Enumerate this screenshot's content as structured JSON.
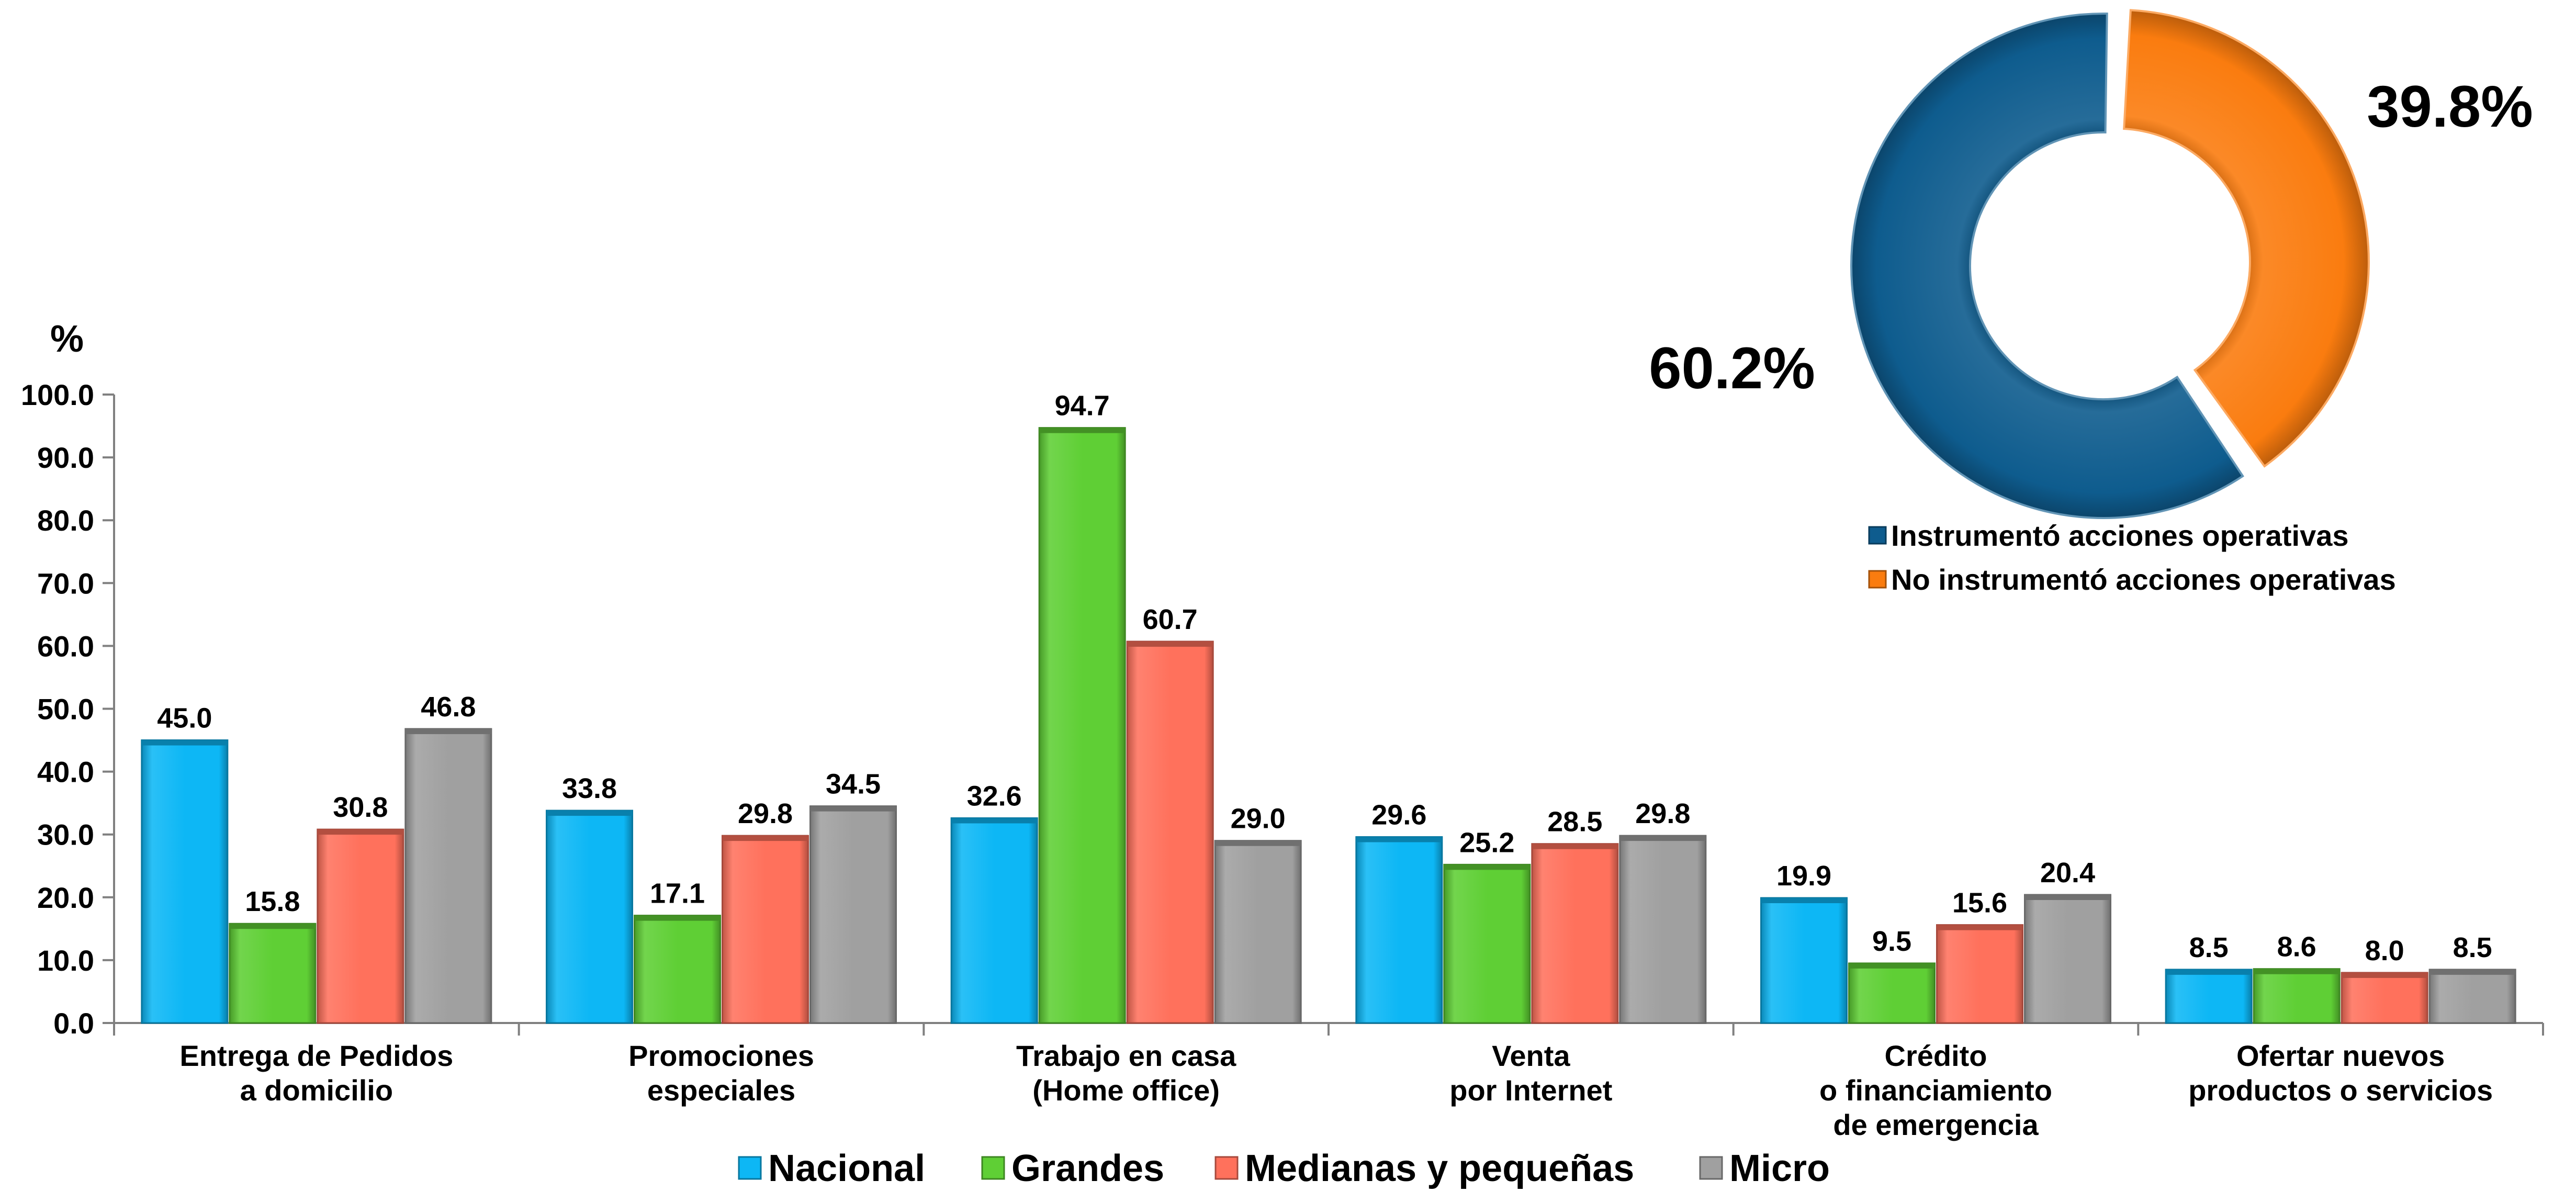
{
  "chart_data": [
    {
      "type": "bar",
      "ylabel": "%",
      "ylim": [
        0,
        100
      ],
      "yticks": [
        "0.0",
        "10.0",
        "20.0",
        "30.0",
        "40.0",
        "50.0",
        "60.0",
        "70.0",
        "80.0",
        "90.0",
        "100.0"
      ],
      "categories": [
        [
          "Entrega de Pedidos",
          "a domicilio"
        ],
        [
          "Promociones",
          "especiales"
        ],
        [
          "Trabajo en casa",
          "(Home office)"
        ],
        [
          "Venta",
          "por Internet"
        ],
        [
          "Crédito",
          "o financiamiento",
          "de emergencia"
        ],
        [
          "Ofertar nuevos",
          "productos o servicios"
        ]
      ],
      "series": [
        {
          "name": "Nacional",
          "color": "#0DB7F5",
          "values": [
            45.0,
            33.8,
            32.6,
            29.6,
            19.9,
            8.5
          ]
        },
        {
          "name": "Grandes",
          "color": "#5FCF35",
          "values": [
            15.8,
            17.1,
            94.7,
            25.2,
            9.5,
            8.6
          ]
        },
        {
          "name": "Medianas y pequeñas",
          "color": "#FF715C",
          "values": [
            30.8,
            29.8,
            60.7,
            28.5,
            15.6,
            8.0
          ]
        },
        {
          "name": "Micro",
          "color": "#A0A0A0",
          "values": [
            46.8,
            34.5,
            29.0,
            29.8,
            20.4,
            8.5
          ]
        }
      ],
      "legend_position": "bottom",
      "grid": false
    },
    {
      "type": "pie",
      "donut": true,
      "slices": [
        {
          "name": "Instrumentó acciones operativas",
          "value": 60.2,
          "label": "60.2%",
          "color": "#0E5C8E"
        },
        {
          "name": "No instrumentó acciones operativas",
          "value": 39.8,
          "label": "39.8%",
          "color": "#FA7C0F"
        }
      ],
      "legend_position": "bottom"
    }
  ]
}
